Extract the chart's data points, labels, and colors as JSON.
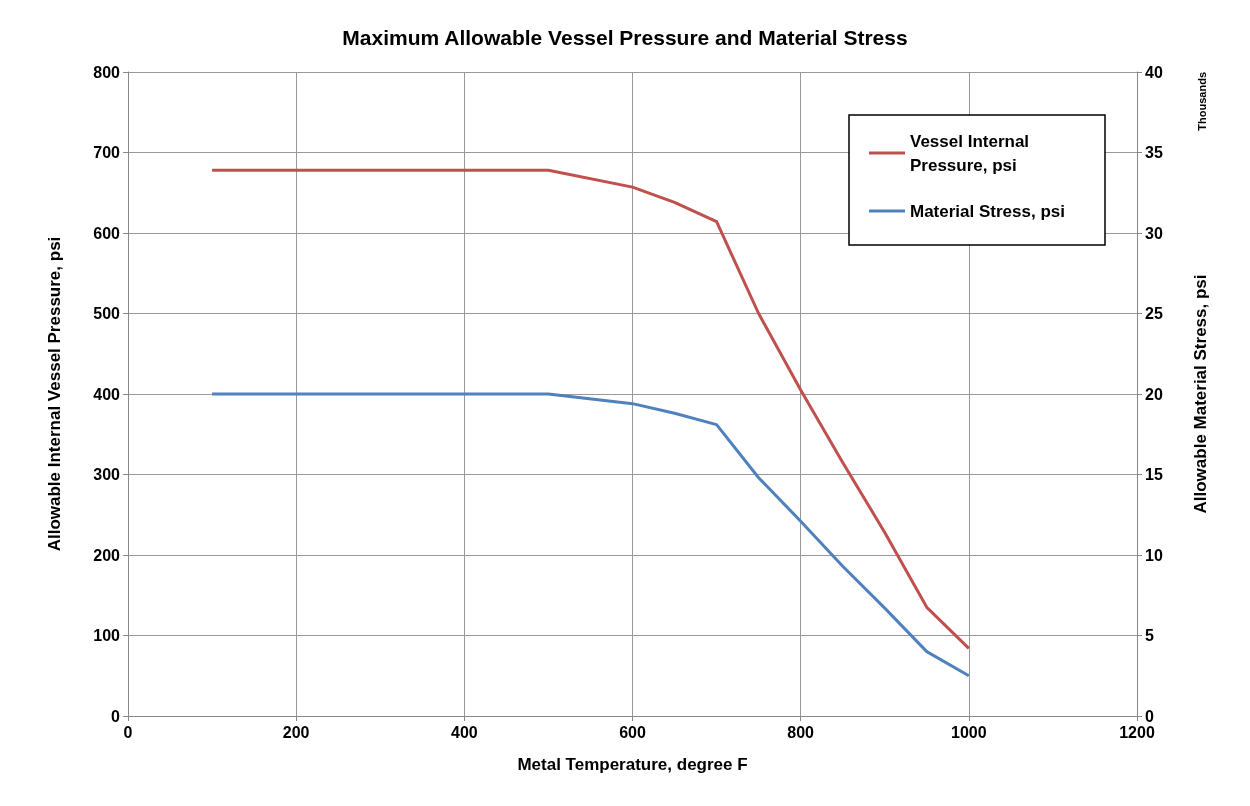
{
  "chart_data": {
    "type": "line",
    "title": "Maximum Allowable Vessel Pressure and Material Stress",
    "xlabel": "Metal Temperature, degree F",
    "ylabel": "Allowable Internal Vessel Pressure, psi",
    "y2label": "Allowable Material Stress, psi",
    "annotations": [
      "Thousands"
    ],
    "x": [
      100,
      500,
      600,
      650,
      700,
      750,
      800,
      850,
      900,
      950,
      1000
    ],
    "series": [
      {
        "name": "Vessel Internal Pressure, psi",
        "color": "#c0504d",
        "values": [
          678,
          678,
          657,
          638,
          614,
          500,
          405,
          315,
          228,
          135,
          84
        ]
      },
      {
        "name": "Material Stress, psi",
        "color": "#4f81bd",
        "axis": "y2",
        "values": [
          20,
          20,
          19.4,
          18.8,
          18.1,
          14.8,
          12.1,
          9.3,
          6.7,
          4.0,
          2.5
        ]
      }
    ],
    "xlim": [
      0,
      1200
    ],
    "xticks": [
      0,
      200,
      400,
      600,
      800,
      1000,
      1200
    ],
    "ylim": [
      0,
      800
    ],
    "yticks": [
      0,
      100,
      200,
      300,
      400,
      500,
      600,
      700,
      800
    ],
    "y2lim": [
      0,
      40
    ],
    "y2ticks": [
      0,
      5,
      10,
      15,
      20,
      25,
      30,
      35,
      40
    ],
    "grid": true,
    "legend": "top right",
    "marker": "none",
    "line_style": "solid"
  }
}
